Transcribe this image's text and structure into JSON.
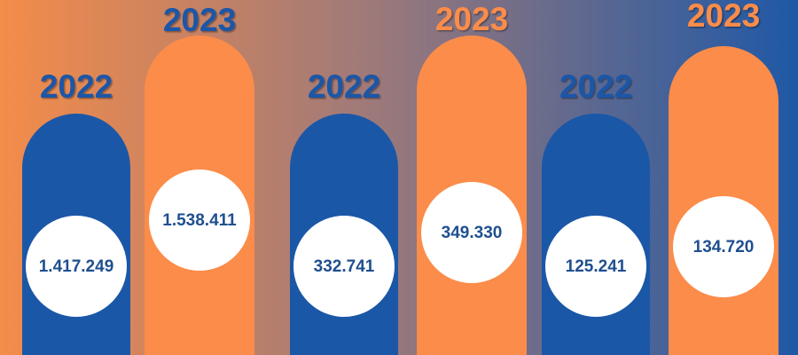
{
  "items": [
    {
      "year": "2022",
      "value": "1.417.249"
    },
    {
      "year": "2023",
      "value": "1.538.411"
    },
    {
      "year": "2022",
      "value": "332.741"
    },
    {
      "year": "2023",
      "value": "349.330"
    },
    {
      "year": "2022",
      "value": "125.241"
    },
    {
      "year": "2023",
      "value": "134.720"
    }
  ]
}
